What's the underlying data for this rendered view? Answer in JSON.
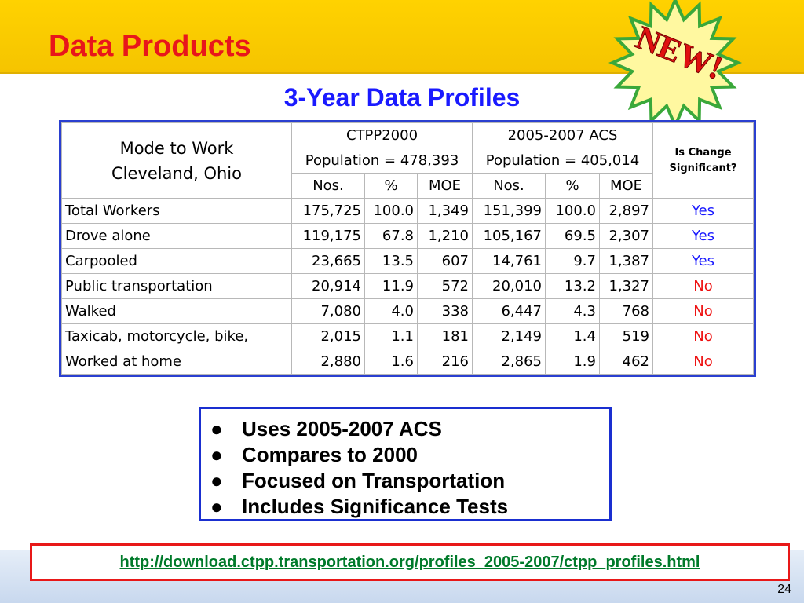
{
  "header": {
    "title": "Data Products",
    "badge": "NEW!"
  },
  "subtitle": "3-Year  Data Profiles",
  "table": {
    "corner": [
      "Mode to Work",
      "Cleveland, Ohio"
    ],
    "groups": [
      "CTPP2000",
      "2005-2007 ACS"
    ],
    "populations": [
      "Population = 478,393",
      "Population = 405,014"
    ],
    "significance_header": [
      "Is Change",
      "Significant?"
    ],
    "columns": [
      "Nos.",
      "%",
      "MOE",
      "Nos.",
      "%",
      "MOE"
    ],
    "rows": [
      [
        "Total Workers",
        "175,725",
        "100.0",
        "1,349",
        "151,399",
        "100.0",
        "2,897",
        "Yes"
      ],
      [
        "Drove alone",
        "119,175",
        "67.8",
        "1,210",
        "105,167",
        "69.5",
        "2,307",
        "Yes"
      ],
      [
        "Carpooled",
        "23,665",
        "13.5",
        "607",
        "14,761",
        "9.7",
        "1,387",
        "Yes"
      ],
      [
        "Public transportation",
        "20,914",
        "11.9",
        "572",
        "20,010",
        "13.2",
        "1,327",
        "No"
      ],
      [
        "Walked",
        "7,080",
        "4.0",
        "338",
        "6,447",
        "4.3",
        "768",
        "No"
      ],
      [
        "Taxicab, motorcycle, bike,",
        "2,015",
        "1.1",
        "181",
        "2,149",
        "1.4",
        "519",
        "No"
      ],
      [
        "Worked at home",
        "2,880",
        "1.6",
        "216",
        "2,865",
        "1.9",
        "462",
        "No"
      ]
    ]
  },
  "bullets": [
    "Uses 2005-2007 ACS",
    "Compares to 2000",
    "Focused on Transportation",
    "Includes Significance Tests"
  ],
  "url": "http://download.ctpp.transportation.org/profiles_2005-2007/ctpp_profiles.html",
  "page_number": "24"
}
